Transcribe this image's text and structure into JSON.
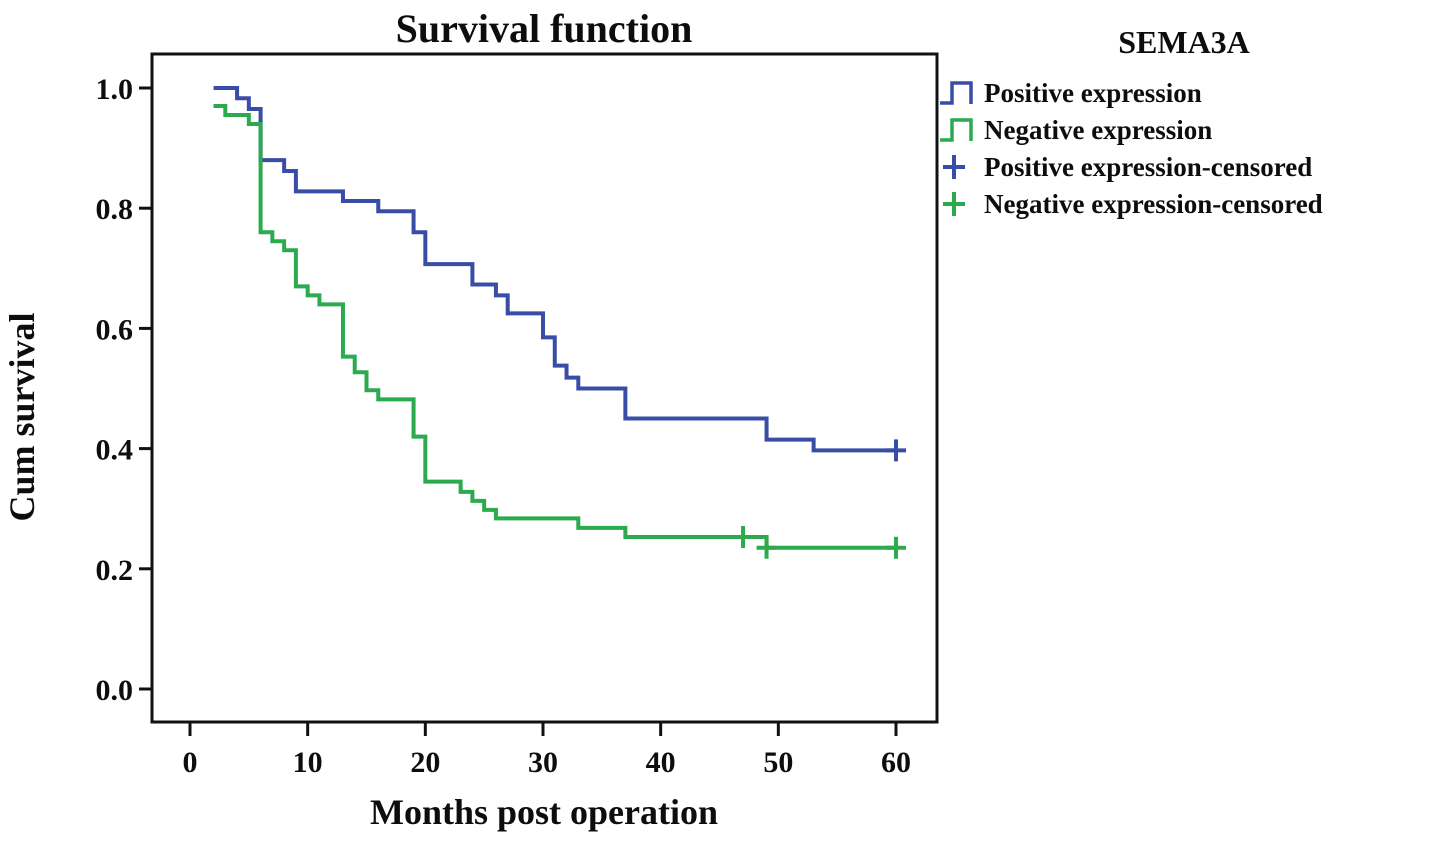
{
  "figure_title": "Survival function",
  "axes": {
    "xlabel": "Months post operation",
    "ylabel": "Cum survival"
  },
  "legend": {
    "title": "SEMA3A",
    "items": [
      {
        "label": "Positive expression",
        "symbol": "step",
        "color": "#3A4DA6"
      },
      {
        "label": "Negative expression",
        "symbol": "step",
        "color": "#2BAA4E"
      },
      {
        "label": "Positive expression-censored",
        "symbol": "plus",
        "color": "#3A4DA6"
      },
      {
        "label": "Negative expression-censored",
        "symbol": "plus",
        "color": "#2BAA4E"
      }
    ]
  },
  "chart_data": {
    "type": "line",
    "subtype": "kaplan-meier-step",
    "title": "Survival function",
    "xlabel": "Months post operation",
    "ylabel": "Cum survival",
    "xlim": [
      -3.2,
      63.5
    ],
    "ylim": [
      -0.055,
      1.057
    ],
    "grid": false,
    "legend_position": "right",
    "legend_title": "SEMA3A",
    "xtick_values": [
      0,
      10,
      20,
      30,
      40,
      50,
      60
    ],
    "xtick_labels": [
      "0",
      "10",
      "20",
      "30",
      "40",
      "50",
      "60"
    ],
    "ytick_values": [
      1.0,
      0.8,
      0.6,
      0.4,
      0.2,
      0.0
    ],
    "ytick_labels": [
      "1.0",
      "0.8",
      "0.6",
      "0.4",
      "0.2",
      "0.0"
    ],
    "axis_color": "#111111",
    "series": [
      {
        "name": "Positive expression",
        "color": "#3A4DA6",
        "step_points": [
          [
            2,
            1.0
          ],
          [
            4,
            0.983
          ],
          [
            5,
            0.965
          ],
          [
            6,
            0.88
          ],
          [
            8,
            0.862
          ],
          [
            9,
            0.828
          ],
          [
            13,
            0.812
          ],
          [
            16,
            0.795
          ],
          [
            19,
            0.76
          ],
          [
            20,
            0.707
          ],
          [
            24,
            0.673
          ],
          [
            26,
            0.655
          ],
          [
            27,
            0.625
          ],
          [
            30,
            0.585
          ],
          [
            31,
            0.538
          ],
          [
            32,
            0.518
          ],
          [
            33,
            0.5
          ],
          [
            37,
            0.45
          ],
          [
            49,
            0.415
          ],
          [
            53,
            0.397
          ]
        ],
        "end_x": 60,
        "censored": [
          [
            60,
            0.397
          ]
        ]
      },
      {
        "name": "Negative expression",
        "color": "#2BAA4E",
        "step_points": [
          [
            2,
            0.97
          ],
          [
            3,
            0.955
          ],
          [
            5,
            0.94
          ],
          [
            6,
            0.76
          ],
          [
            7,
            0.745
          ],
          [
            8,
            0.73
          ],
          [
            9,
            0.67
          ],
          [
            10,
            0.655
          ],
          [
            11,
            0.64
          ],
          [
            13,
            0.553
          ],
          [
            14,
            0.527
          ],
          [
            15,
            0.497
          ],
          [
            16,
            0.482
          ],
          [
            19,
            0.42
          ],
          [
            20,
            0.345
          ],
          [
            23,
            0.328
          ],
          [
            24,
            0.313
          ],
          [
            25,
            0.298
          ],
          [
            26,
            0.284
          ],
          [
            33,
            0.268
          ],
          [
            37,
            0.253
          ],
          [
            49,
            0.235
          ]
        ],
        "end_x": 60,
        "censored": [
          [
            47,
            0.253
          ],
          [
            49,
            0.235
          ],
          [
            60,
            0.235
          ]
        ]
      }
    ]
  }
}
